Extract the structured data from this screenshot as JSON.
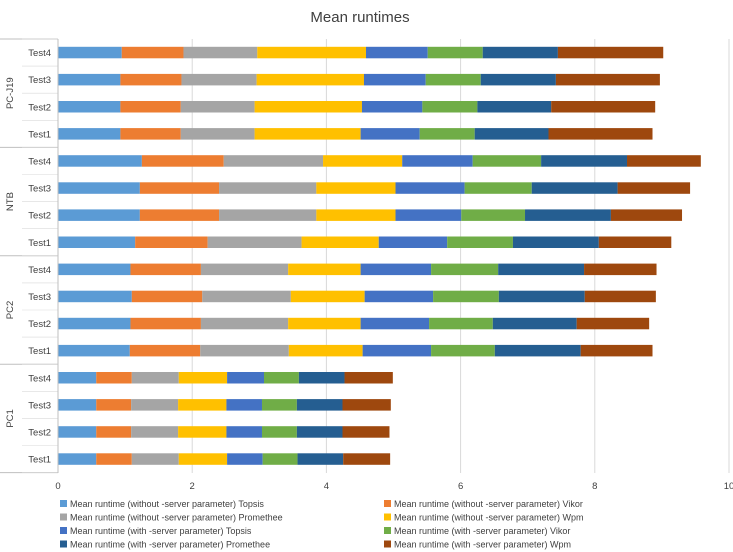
{
  "chart_data": {
    "type": "stacked-bar-horizontal",
    "title": "Mean runtimes",
    "xlabel": "",
    "ylabel": "",
    "xlim": [
      0,
      10
    ],
    "x_ticks": [
      "0",
      "2",
      "4",
      "6",
      "8",
      "10"
    ],
    "gridlines": true,
    "legend_position": "bottom",
    "groups": [
      {
        "name": "PC-J19",
        "categories": [
          "Test4",
          "Test3",
          "Test2",
          "Test1"
        ]
      },
      {
        "name": "NTB",
        "categories": [
          "Test4",
          "Test3",
          "Test2",
          "Test1"
        ]
      },
      {
        "name": "PC2",
        "categories": [
          "Test4",
          "Test3",
          "Test2",
          "Test1"
        ]
      },
      {
        "name": "PC1",
        "categories": [
          "Test4",
          "Test3",
          "Test2",
          "Test1"
        ]
      }
    ],
    "series": [
      {
        "name": "Mean runtime (without -server parameter) Topsis",
        "color": "#5B9BD5",
        "values": [
          0.95,
          0.93,
          0.93,
          0.93,
          1.25,
          1.22,
          1.22,
          1.15,
          1.08,
          1.1,
          1.08,
          1.07,
          0.57,
          0.57,
          0.57,
          0.57
        ]
      },
      {
        "name": "Mean runtime (without -server parameter) Vikor",
        "color": "#ED7D31",
        "values": [
          0.92,
          0.91,
          0.9,
          0.9,
          1.22,
          1.18,
          1.18,
          1.08,
          1.05,
          1.05,
          1.05,
          1.05,
          0.53,
          0.52,
          0.52,
          0.53
        ]
      },
      {
        "name": "Mean runtime (without -server parameter) Promethee",
        "color": "#A5A5A5",
        "values": [
          1.1,
          1.12,
          1.1,
          1.1,
          1.48,
          1.45,
          1.45,
          1.4,
          1.3,
          1.32,
          1.3,
          1.32,
          0.7,
          0.7,
          0.7,
          0.7
        ]
      },
      {
        "name": "Mean runtime (without -server parameter) Wpm",
        "color": "#FFC000",
        "values": [
          1.62,
          1.6,
          1.6,
          1.58,
          1.18,
          1.18,
          1.18,
          1.15,
          1.08,
          1.1,
          1.08,
          1.1,
          0.72,
          0.72,
          0.72,
          0.72
        ]
      },
      {
        "name": "Mean runtime (with -server parameter) Topsis",
        "color": "#4472C4",
        "values": [
          0.92,
          0.92,
          0.9,
          0.88,
          1.05,
          1.03,
          0.98,
          1.02,
          1.05,
          1.02,
          1.02,
          1.02,
          0.55,
          0.53,
          0.53,
          0.53
        ]
      },
      {
        "name": "Mean runtime (with -server parameter) Vikor",
        "color": "#70AD47",
        "values": [
          0.82,
          0.82,
          0.82,
          0.82,
          1.02,
          1.0,
          0.95,
          0.98,
          1.0,
          0.98,
          0.95,
          0.95,
          0.52,
          0.52,
          0.52,
          0.52
        ]
      },
      {
        "name": "Mean runtime (with -server parameter) Promethee",
        "color": "#255E91",
        "values": [
          1.12,
          1.12,
          1.1,
          1.1,
          1.28,
          1.28,
          1.28,
          1.28,
          1.28,
          1.28,
          1.25,
          1.28,
          0.68,
          0.68,
          0.68,
          0.68
        ]
      },
      {
        "name": "Mean runtime (with -server parameter) Wpm",
        "color": "#9E480E",
        "values": [
          1.57,
          1.55,
          1.55,
          1.55,
          1.1,
          1.08,
          1.06,
          1.08,
          1.08,
          1.06,
          1.08,
          1.07,
          0.72,
          0.72,
          0.7,
          0.7
        ]
      }
    ]
  }
}
